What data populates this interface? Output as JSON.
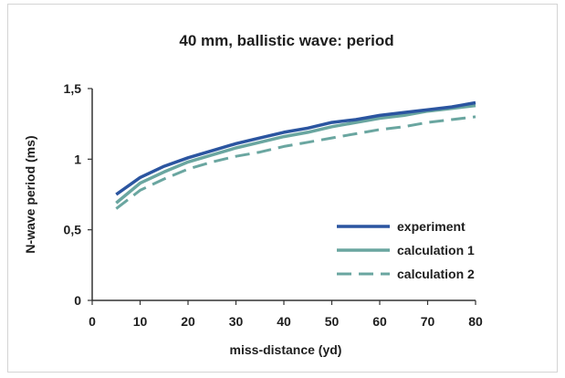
{
  "chart_data": {
    "type": "line",
    "title": "40 mm, ballistic wave: period",
    "xlabel": "miss-distance  (yd)",
    "ylabel": "N-wave period  (ms)",
    "xlim": [
      0,
      80
    ],
    "ylim": [
      0,
      1.5
    ],
    "xticks": [
      0,
      10,
      20,
      30,
      40,
      50,
      60,
      70,
      80
    ],
    "xtick_labels": [
      "0",
      "10",
      "20",
      "30",
      "40",
      "50",
      "60",
      "70",
      "80"
    ],
    "yticks": [
      0,
      0.5,
      1,
      1.5
    ],
    "ytick_labels": [
      "0",
      "0,5",
      "1",
      "1,5"
    ],
    "grid": false,
    "legend_position": "lower-right",
    "x": [
      5,
      10,
      15,
      20,
      25,
      30,
      35,
      40,
      45,
      50,
      55,
      60,
      65,
      70,
      75,
      80
    ],
    "series": [
      {
        "name": "experiment",
        "color": "#2b55a0",
        "style": "solid",
        "values": [
          0.75,
          0.87,
          0.95,
          1.01,
          1.06,
          1.11,
          1.15,
          1.19,
          1.22,
          1.26,
          1.28,
          1.31,
          1.33,
          1.35,
          1.37,
          1.4
        ]
      },
      {
        "name": "calculation 1",
        "color": "#6aa6a0",
        "style": "solid",
        "values": [
          0.69,
          0.83,
          0.91,
          0.98,
          1.03,
          1.08,
          1.12,
          1.16,
          1.19,
          1.23,
          1.26,
          1.29,
          1.31,
          1.34,
          1.36,
          1.38
        ]
      },
      {
        "name": "calculation 2",
        "color": "#6aa6a0",
        "style": "dashed",
        "values": [
          0.65,
          0.78,
          0.86,
          0.93,
          0.98,
          1.02,
          1.05,
          1.09,
          1.12,
          1.15,
          1.18,
          1.21,
          1.23,
          1.26,
          1.28,
          1.3
        ]
      }
    ]
  }
}
